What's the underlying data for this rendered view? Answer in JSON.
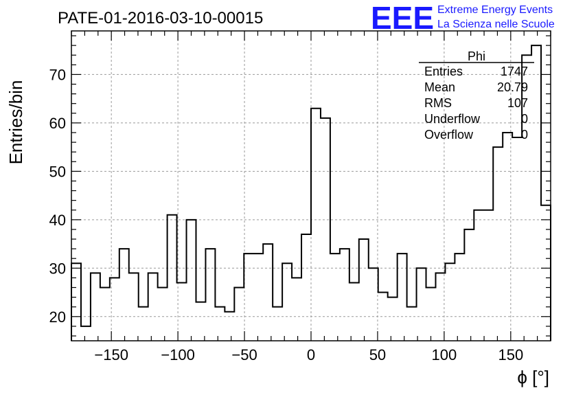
{
  "chart_data": {
    "type": "bar",
    "style": "step-histogram",
    "title": "PATE-01-2016-03-10-00015",
    "xlabel": "ϕ [°]",
    "ylabel": "Entries/bin",
    "xlim": [
      -180,
      180
    ],
    "ylim": [
      15,
      79
    ],
    "xticks": [
      -150,
      -100,
      -50,
      0,
      50,
      100,
      150
    ],
    "yticks": [
      20,
      30,
      40,
      50,
      60,
      70
    ],
    "grid": true,
    "bin_width": 7.2,
    "bin_edges_start": -180,
    "values": [
      31,
      18,
      29,
      26,
      28,
      34,
      29,
      22,
      29,
      26,
      41,
      27,
      40,
      23,
      34,
      22,
      21,
      26,
      33,
      33,
      35,
      22,
      31,
      28,
      37,
      63,
      61,
      33,
      34,
      27,
      36,
      30,
      25,
      24,
      33,
      22,
      30,
      26,
      29,
      31,
      33,
      38,
      42,
      42,
      55,
      58,
      57,
      74,
      76,
      43
    ],
    "line_color": "#000000"
  },
  "logo": {
    "mark": "EEE",
    "line1": "Extreme Energy Events",
    "line2": "La Scienza nelle Scuole",
    "color": "#1a1aff"
  },
  "stats_box": {
    "title": "Phi",
    "rows": [
      {
        "label": "Entries",
        "value": "1747"
      },
      {
        "label": "Mean",
        "value": "20.79"
      },
      {
        "label": "RMS",
        "value": "107"
      },
      {
        "label": "Underflow",
        "value": "0"
      },
      {
        "label": "Overflow",
        "value": "0"
      }
    ]
  }
}
